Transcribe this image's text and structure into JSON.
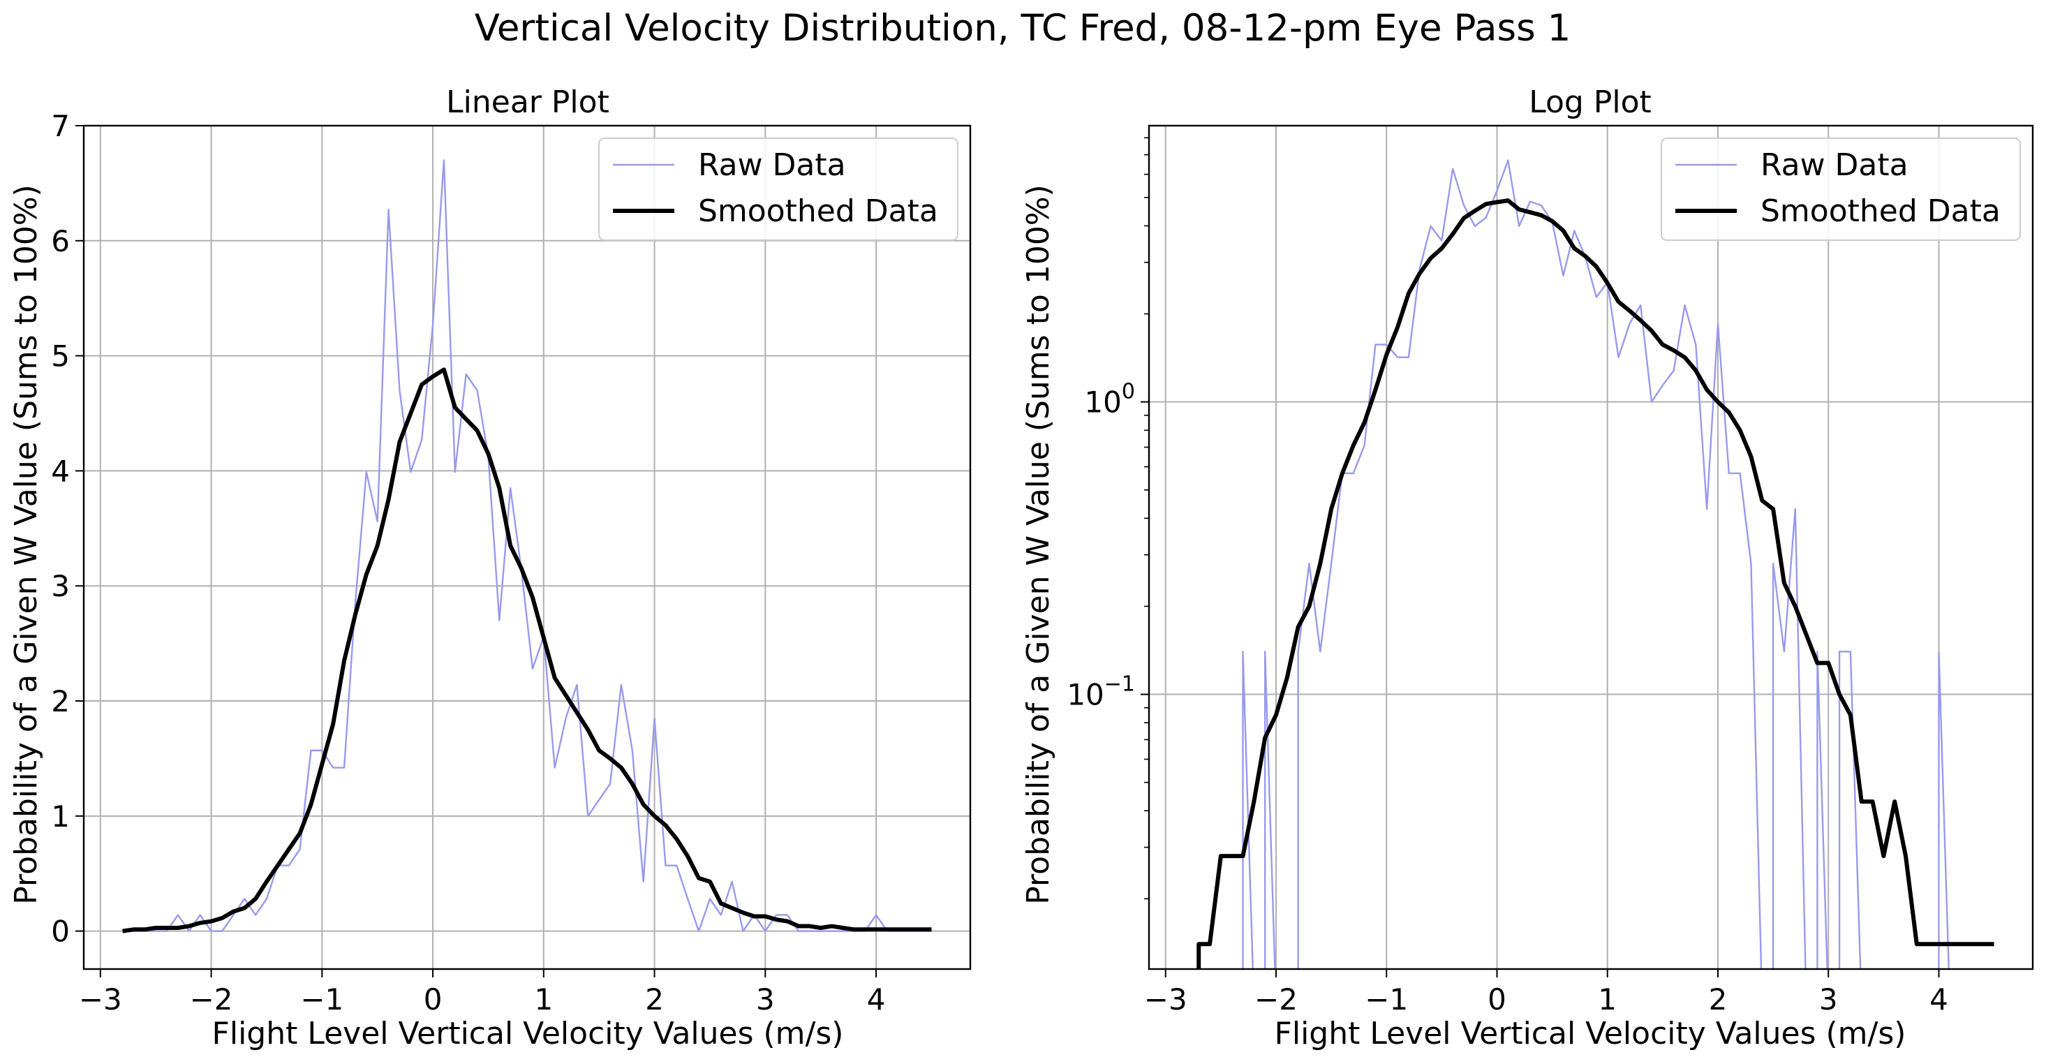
{
  "figure": {
    "title": "Vertical Velocity Distribution, TC Fred, 08-12-pm Eye Pass 1"
  },
  "colors": {
    "raw": "#9999ee",
    "smoothed": "#000000",
    "grid": "#b0b0b0"
  },
  "chart_data": [
    {
      "type": "line",
      "title": "Linear Plot",
      "xlabel": "Flight Level Vertical Velocity Values (m/s)",
      "ylabel": "Probability of a Given W Value (Sums to 100%)",
      "xlim": [
        -3.15,
        4.85
      ],
      "ylim": [
        -0.33,
        7.0
      ],
      "yscale": "linear",
      "grid": true,
      "legend": "top-right",
      "xticks": [
        "−3",
        "−2",
        "−1",
        "0",
        "1",
        "2",
        "3",
        "4"
      ],
      "yticks": [
        "0",
        "1",
        "2",
        "3",
        "4",
        "5",
        "6",
        "7"
      ],
      "series": [
        {
          "name": "Raw Data",
          "x": [
            -2.8,
            -2.7,
            -2.6,
            -2.5,
            -2.4,
            -2.3,
            -2.2,
            -2.1,
            -2.0,
            -1.9,
            -1.8,
            -1.7,
            -1.6,
            -1.5,
            -1.4,
            -1.3,
            -1.2,
            -1.1,
            -1.0,
            -0.9,
            -0.8,
            -0.7,
            -0.6,
            -0.5,
            -0.4,
            -0.3,
            -0.2,
            -0.1,
            0.0,
            0.1,
            0.2,
            0.3,
            0.4,
            0.5,
            0.6,
            0.7,
            0.8,
            0.9,
            1.0,
            1.1,
            1.2,
            1.3,
            1.4,
            1.5,
            1.6,
            1.7,
            1.8,
            1.9,
            2.0,
            2.1,
            2.2,
            2.3,
            2.4,
            2.5,
            2.6,
            2.7,
            2.8,
            2.9,
            3.0,
            3.1,
            3.2,
            3.3,
            3.4,
            3.5,
            3.6,
            3.7,
            3.8,
            3.9,
            4.0,
            4.1,
            4.2,
            4.3,
            4.4,
            4.5
          ],
          "values": [
            0,
            0,
            0,
            0,
            0,
            0.14,
            0,
            0.14,
            0,
            0,
            0.14,
            0.28,
            0.14,
            0.28,
            0.57,
            0.57,
            0.71,
            1.57,
            1.57,
            1.42,
            1.42,
            2.85,
            3.99,
            3.56,
            6.27,
            4.7,
            3.99,
            4.27,
            5.27,
            6.7,
            3.99,
            4.84,
            4.7,
            4.13,
            2.7,
            3.85,
            3.13,
            2.28,
            2.56,
            1.42,
            1.85,
            2.14,
            1.0,
            1.14,
            1.28,
            2.14,
            1.57,
            0.43,
            1.85,
            0.57,
            0.57,
            0.28,
            0,
            0.28,
            0.14,
            0.43,
            0,
            0.14,
            0,
            0.14,
            0.14,
            0,
            0,
            0,
            0,
            0,
            0,
            0,
            0.14,
            0,
            0,
            0,
            0,
            0
          ]
        },
        {
          "name": "Smoothed Data",
          "x": [
            -2.8,
            -2.7,
            -2.6,
            -2.5,
            -2.4,
            -2.3,
            -2.2,
            -2.1,
            -2.0,
            -1.9,
            -1.8,
            -1.7,
            -1.6,
            -1.5,
            -1.4,
            -1.3,
            -1.2,
            -1.1,
            -1.0,
            -0.9,
            -0.8,
            -0.7,
            -0.6,
            -0.5,
            -0.4,
            -0.3,
            -0.2,
            -0.1,
            0.0,
            0.1,
            0.2,
            0.3,
            0.4,
            0.5,
            0.6,
            0.7,
            0.8,
            0.9,
            1.0,
            1.1,
            1.2,
            1.3,
            1.4,
            1.5,
            1.6,
            1.7,
            1.8,
            1.9,
            2.0,
            2.1,
            2.2,
            2.3,
            2.4,
            2.5,
            2.6,
            2.7,
            2.8,
            2.9,
            3.0,
            3.1,
            3.2,
            3.3,
            3.4,
            3.5,
            3.6,
            3.7,
            3.8,
            3.9,
            4.0,
            4.1,
            4.2,
            4.3,
            4.4,
            4.5
          ],
          "values": [
            0,
            0.014,
            0.014,
            0.028,
            0.028,
            0.028,
            0.043,
            0.071,
            0.085,
            0.114,
            0.17,
            0.2,
            0.28,
            0.43,
            0.57,
            0.71,
            0.85,
            1.1,
            1.45,
            1.8,
            2.35,
            2.75,
            3.1,
            3.35,
            3.75,
            4.25,
            4.5,
            4.75,
            4.82,
            4.88,
            4.55,
            4.45,
            4.35,
            4.15,
            3.85,
            3.35,
            3.15,
            2.9,
            2.55,
            2.2,
            2.05,
            1.9,
            1.75,
            1.57,
            1.5,
            1.42,
            1.28,
            1.1,
            1.0,
            0.92,
            0.8,
            0.65,
            0.46,
            0.43,
            0.24,
            0.2,
            0.16,
            0.128,
            0.128,
            0.1,
            0.085,
            0.043,
            0.043,
            0.028,
            0.043,
            0.028,
            0.014,
            0.014,
            0.014,
            0.014,
            0.014,
            0.014,
            0.014,
            0.014
          ]
        }
      ]
    },
    {
      "type": "line",
      "title": "Log Plot",
      "xlabel": "Flight Level Vertical Velocity Values (m/s)",
      "ylabel": "Probability of a Given W Value (Sums to 100%)",
      "xlim": [
        -3.15,
        4.85
      ],
      "ylim": [
        0.0115,
        8.8
      ],
      "yscale": "log",
      "grid": true,
      "legend": "top-right",
      "xticks": [
        "−3",
        "−2",
        "−1",
        "0",
        "1",
        "2",
        "3",
        "4"
      ],
      "yticks": [
        {
          "base": "10",
          "exp": "0",
          "value": 1
        },
        {
          "base": "10",
          "exp": "−1",
          "value": 0.1
        }
      ],
      "series": [
        {
          "name": "Raw Data",
          "ref": 0
        },
        {
          "name": "Smoothed Data",
          "ref": 1
        }
      ]
    }
  ]
}
